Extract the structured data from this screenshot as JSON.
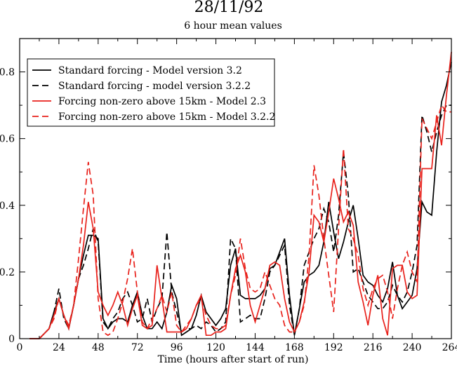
{
  "chart_data": {
    "type": "line",
    "title": "28/11/92",
    "subtitle": "6 hour mean values",
    "xlabel": "Time (hours after start of run)",
    "ylabel": "",
    "xlim": [
      0,
      264
    ],
    "ylim": [
      0,
      0.9
    ],
    "xticks": [
      0,
      24,
      48,
      72,
      96,
      120,
      144,
      168,
      192,
      216,
      240,
      264
    ],
    "xtick_labels": [
      "0",
      "24",
      "48",
      "72",
      "96",
      "120",
      "144",
      "168",
      "192",
      "216",
      "240",
      "264"
    ],
    "yticks": [
      0,
      0.2,
      0.4,
      0.6,
      0.8
    ],
    "ytick_labels": [
      "0",
      "0.2",
      "0.4",
      "0.6",
      "0.8"
    ],
    "grid": false,
    "legend_position": "top-left",
    "series": [
      {
        "name": "Standard forcing - Model version 3.2",
        "color": "#000000",
        "dash": "solid",
        "x": [
          6,
          12,
          18,
          21,
          24,
          27,
          30,
          33,
          36,
          39,
          42,
          45,
          48,
          51,
          54,
          57,
          60,
          63,
          66,
          69,
          72,
          75,
          78,
          81,
          84,
          87,
          90,
          93,
          96,
          99,
          102,
          105,
          108,
          111,
          114,
          117,
          120,
          123,
          126,
          129,
          132,
          135,
          138,
          141,
          144,
          147,
          150,
          153,
          156,
          159,
          162,
          165,
          168,
          171,
          174,
          177,
          180,
          183,
          186,
          189,
          192,
          195,
          198,
          201,
          204,
          207,
          210,
          213,
          216,
          219,
          222,
          225,
          228,
          231,
          234,
          237,
          240,
          243,
          246,
          249,
          252,
          255,
          258,
          261,
          264
        ],
        "y": [
          0,
          0,
          0.03,
          0.08,
          0.12,
          0.07,
          0.03,
          0.1,
          0.18,
          0.25,
          0.31,
          0.31,
          0.3,
          0.06,
          0.03,
          0.05,
          0.06,
          0.06,
          0.05,
          0.1,
          0.14,
          0.07,
          0.03,
          0.03,
          0.05,
          0.03,
          0.08,
          0.16,
          0.12,
          0.01,
          0.02,
          0.03,
          0.07,
          0.13,
          0.08,
          0.06,
          0.04,
          0.06,
          0.09,
          0.22,
          0.27,
          0.13,
          0.12,
          0.12,
          0.12,
          0.13,
          0.15,
          0.21,
          0.22,
          0.26,
          0.3,
          0.13,
          0.01,
          0.09,
          0.17,
          0.19,
          0.2,
          0.22,
          0.29,
          0.41,
          0.32,
          0.24,
          0.29,
          0.35,
          0.4,
          0.3,
          0.19,
          0.17,
          0.16,
          0.13,
          0.11,
          0.15,
          0.23,
          0.13,
          0.09,
          0.11,
          0.13,
          0.21,
          0.41,
          0.38,
          0.37,
          0.56,
          0.71,
          0.76,
          0.83
        ]
      },
      {
        "name": "Standard forcing - model version 3.2.2",
        "color": "#000000",
        "dash": "dashed",
        "x": [
          6,
          12,
          18,
          21,
          24,
          27,
          30,
          33,
          36,
          39,
          42,
          45,
          48,
          51,
          54,
          57,
          60,
          63,
          66,
          69,
          72,
          75,
          78,
          81,
          84,
          87,
          90,
          93,
          96,
          99,
          102,
          105,
          108,
          111,
          114,
          117,
          120,
          123,
          126,
          129,
          132,
          135,
          138,
          141,
          144,
          147,
          150,
          153,
          156,
          159,
          162,
          165,
          168,
          171,
          174,
          177,
          180,
          183,
          186,
          189,
          192,
          195,
          198,
          201,
          204,
          207,
          210,
          213,
          216,
          219,
          222,
          225,
          228,
          231,
          234,
          237,
          240,
          243,
          246,
          249,
          252,
          255,
          258,
          261,
          264
        ],
        "y": [
          0,
          0,
          0.03,
          0.08,
          0.15,
          0.06,
          0.03,
          0.1,
          0.18,
          0.22,
          0.27,
          0.33,
          0.29,
          0.05,
          0.03,
          0.06,
          0.08,
          0.12,
          0.14,
          0.1,
          0.05,
          0.06,
          0.12,
          0.05,
          0.09,
          0.12,
          0.32,
          0.14,
          0.08,
          0.02,
          0.03,
          0.03,
          0.04,
          0.03,
          0.05,
          0.04,
          0.02,
          0.03,
          0.05,
          0.3,
          0.27,
          0.05,
          0.06,
          0.07,
          0.06,
          0.06,
          0.12,
          0.2,
          0.22,
          0.25,
          0.28,
          0.1,
          0.01,
          0.09,
          0.22,
          0.26,
          0.3,
          0.33,
          0.39,
          0.35,
          0.26,
          0.37,
          0.56,
          0.43,
          0.2,
          0.21,
          0.17,
          0.13,
          0.11,
          0.09,
          0.09,
          0.11,
          0.16,
          0.13,
          0.11,
          0.14,
          0.2,
          0.28,
          0.67,
          0.62,
          0.56,
          0.62,
          0.67,
          0.7,
          0.7
        ]
      },
      {
        "name": "Forcing non-zero above 15km - Model 2.3",
        "color": "#e8211b",
        "dash": "solid",
        "x": [
          6,
          12,
          18,
          21,
          24,
          27,
          30,
          33,
          36,
          39,
          42,
          45,
          48,
          51,
          54,
          57,
          60,
          63,
          66,
          69,
          72,
          75,
          78,
          81,
          84,
          87,
          90,
          93,
          96,
          99,
          102,
          105,
          108,
          111,
          114,
          117,
          120,
          123,
          126,
          129,
          132,
          135,
          138,
          141,
          144,
          147,
          150,
          153,
          156,
          159,
          162,
          165,
          168,
          171,
          174,
          177,
          180,
          183,
          186,
          189,
          192,
          195,
          198,
          201,
          204,
          207,
          210,
          213,
          216,
          219,
          222,
          225,
          228,
          231,
          234,
          237,
          240,
          243,
          246,
          249,
          252,
          255,
          258,
          261,
          264
        ],
        "y": [
          0,
          0,
          0.03,
          0.07,
          0.12,
          0.07,
          0.03,
          0.1,
          0.18,
          0.28,
          0.41,
          0.33,
          0.14,
          0.1,
          0.07,
          0.1,
          0.14,
          0.1,
          0.04,
          0.09,
          0.13,
          0.04,
          0.03,
          0.04,
          0.22,
          0.12,
          0.02,
          0.02,
          0.02,
          0.02,
          0.03,
          0.06,
          0.1,
          0.13,
          0.01,
          0.01,
          0.02,
          0.02,
          0.03,
          0.13,
          0.21,
          0.25,
          0.2,
          0.1,
          0.05,
          0.1,
          0.15,
          0.22,
          0.23,
          0.22,
          0.12,
          0.05,
          0.02,
          0.05,
          0.11,
          0.2,
          0.37,
          0.35,
          0.29,
          0.38,
          0.48,
          0.42,
          0.35,
          0.38,
          0.34,
          0.17,
          0.11,
          0.04,
          0.13,
          0.19,
          0.06,
          0.01,
          0.21,
          0.22,
          0.22,
          0.14,
          0.12,
          0.13,
          0.51,
          0.51,
          0.51,
          0.67,
          0.58,
          0.73,
          0.86
        ]
      },
      {
        "name": "Forcing non-zero above 15km - Model 3.2.2",
        "color": "#e8211b",
        "dash": "dashed",
        "x": [
          6,
          12,
          18,
          21,
          24,
          27,
          30,
          33,
          36,
          39,
          42,
          45,
          48,
          51,
          54,
          57,
          60,
          63,
          66,
          69,
          72,
          75,
          78,
          81,
          84,
          87,
          90,
          93,
          96,
          99,
          102,
          105,
          108,
          111,
          114,
          117,
          120,
          123,
          126,
          129,
          132,
          135,
          138,
          141,
          144,
          147,
          150,
          153,
          156,
          159,
          162,
          165,
          168,
          171,
          174,
          177,
          180,
          183,
          186,
          189,
          192,
          195,
          198,
          201,
          204,
          207,
          210,
          213,
          216,
          219,
          222,
          225,
          228,
          231,
          234,
          237,
          240,
          243,
          246,
          249,
          252,
          255,
          258,
          261,
          264
        ],
        "y": [
          0,
          0,
          0.03,
          0.06,
          0.12,
          0.07,
          0.04,
          0.1,
          0.24,
          0.39,
          0.53,
          0.43,
          0.12,
          0.02,
          0.01,
          0.02,
          0.06,
          0.11,
          0.18,
          0.27,
          0.14,
          0.05,
          0.03,
          0.06,
          0.09,
          0.13,
          0.08,
          0.14,
          0.04,
          0.02,
          0.04,
          0.06,
          0.1,
          0.12,
          0.07,
          0.04,
          0.03,
          0.03,
          0.04,
          0.13,
          0.19,
          0.3,
          0.21,
          0.15,
          0.14,
          0.15,
          0.2,
          0.16,
          0.12,
          0.1,
          0.04,
          0.02,
          0.02,
          0.05,
          0.1,
          0.25,
          0.52,
          0.43,
          0.3,
          0.19,
          0.08,
          0.33,
          0.57,
          0.33,
          0.3,
          0.25,
          0.15,
          0.1,
          0.15,
          0.18,
          0.19,
          0.14,
          0.06,
          0.15,
          0.22,
          0.26,
          0.2,
          0.17,
          0.66,
          0.63,
          0.6,
          0.65,
          0.7,
          0.68,
          0.68
        ]
      }
    ]
  }
}
